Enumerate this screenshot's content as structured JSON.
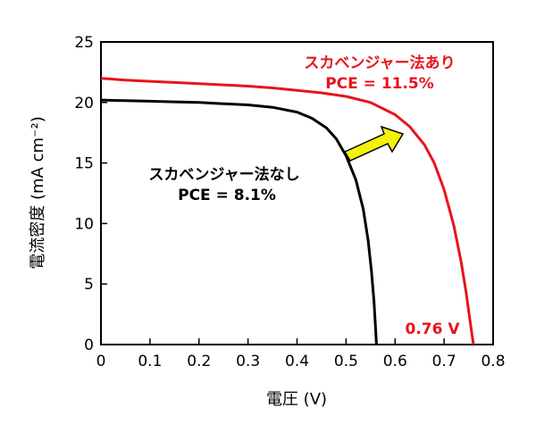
{
  "chart_data": {
    "type": "line",
    "xlabel": "電圧 (V)",
    "ylabel": "電流密度 (mA cm⁻²)",
    "xlim": [
      0,
      0.8
    ],
    "ylim": [
      0,
      25
    ],
    "x_ticks": [
      "0",
      "0.1",
      "0.2",
      "0.3",
      "0.4",
      "0.5",
      "0.6",
      "0.7",
      "0.8"
    ],
    "y_ticks": [
      "0",
      "5",
      "10",
      "15",
      "20",
      "25"
    ],
    "grid": false,
    "series": [
      {
        "name": "スカベンジャー法なし",
        "color": "#000000",
        "points": [
          [
            0,
            20.2
          ],
          [
            0.05,
            20.15
          ],
          [
            0.1,
            20.1
          ],
          [
            0.15,
            20.05
          ],
          [
            0.2,
            20.0
          ],
          [
            0.25,
            19.9
          ],
          [
            0.3,
            19.8
          ],
          [
            0.35,
            19.6
          ],
          [
            0.4,
            19.2
          ],
          [
            0.43,
            18.7
          ],
          [
            0.46,
            17.9
          ],
          [
            0.48,
            17.0
          ],
          [
            0.5,
            15.6
          ],
          [
            0.52,
            13.6
          ],
          [
            0.535,
            11.2
          ],
          [
            0.545,
            8.6
          ],
          [
            0.552,
            6.0
          ],
          [
            0.557,
            3.5
          ],
          [
            0.56,
            1.5
          ],
          [
            0.562,
            0
          ]
        ]
      },
      {
        "name": "スカベンジャー法あり",
        "color": "#e8141b",
        "points": [
          [
            0,
            22.0
          ],
          [
            0.05,
            21.85
          ],
          [
            0.1,
            21.75
          ],
          [
            0.15,
            21.65
          ],
          [
            0.2,
            21.55
          ],
          [
            0.25,
            21.45
          ],
          [
            0.3,
            21.35
          ],
          [
            0.35,
            21.2
          ],
          [
            0.4,
            21.0
          ],
          [
            0.45,
            20.8
          ],
          [
            0.5,
            20.5
          ],
          [
            0.55,
            20.0
          ],
          [
            0.6,
            19.0
          ],
          [
            0.63,
            18.0
          ],
          [
            0.66,
            16.5
          ],
          [
            0.68,
            15.0
          ],
          [
            0.7,
            12.8
          ],
          [
            0.72,
            9.8
          ],
          [
            0.735,
            6.8
          ],
          [
            0.745,
            4.3
          ],
          [
            0.752,
            2.2
          ],
          [
            0.757,
            0.8
          ],
          [
            0.76,
            0
          ]
        ]
      }
    ],
    "annotations": {
      "with_label": "スカベンジャー法あり",
      "with_pce": "PCE = 11.5%",
      "without_label": "スカベンジャー法なし",
      "without_pce": "PCE = 8.1%",
      "voc_label": "0.76 V"
    },
    "arrow_color": "#f2f20a"
  }
}
